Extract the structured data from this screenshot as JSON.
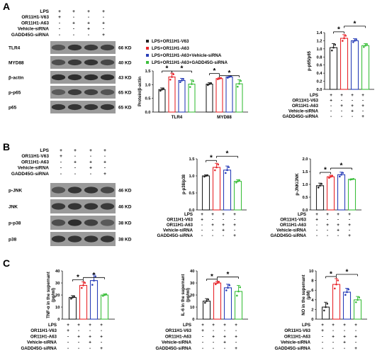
{
  "panel_labels": [
    "A",
    "B",
    "C"
  ],
  "kd_unit": " KD",
  "conditions_A": {
    "rows": [
      "LPS",
      "OR11H1-V63",
      "OR11H1-A63",
      "Vehicle-siRNA",
      "GADD45G-siRNA"
    ],
    "signs": [
      [
        "+",
        "+",
        "+",
        "+"
      ],
      [
        "+",
        "-",
        "-",
        "-"
      ],
      [
        "-",
        "+",
        "+",
        "+"
      ],
      [
        "-",
        "-",
        "+",
        "-"
      ],
      [
        "-",
        "-",
        "-",
        "+"
      ]
    ]
  },
  "conditions_B": {
    "rows": [
      "LPS",
      "OR11H1-V63",
      "OR11H1-A63",
      "Vehicle-siRNA",
      "GADD45G-siRNA"
    ],
    "signs": [
      [
        "+",
        "+",
        "+",
        "+"
      ],
      [
        "+",
        "-",
        "-",
        "-"
      ],
      [
        "-",
        "+",
        "+",
        "+"
      ],
      [
        "-",
        "-",
        "+",
        "-"
      ],
      [
        "-",
        "-",
        "-",
        "+"
      ]
    ]
  },
  "blots_A": [
    {
      "name": "TLR4",
      "kd": "66"
    },
    {
      "name": "MYD88",
      "kd": "40"
    },
    {
      "name": "β-actin",
      "kd": "43"
    },
    {
      "name": "p-p65",
      "kd": "65"
    },
    {
      "name": "p65",
      "kd": "65"
    }
  ],
  "blots_B": [
    {
      "name": "p-JNK",
      "kd": "46"
    },
    {
      "name": "JNK",
      "kd": "46"
    },
    {
      "name": "p-p38",
      "kd": "38"
    },
    {
      "name": "p38",
      "kd": "38"
    }
  ],
  "legend_A": [
    {
      "label": "LPS+OR11H1-V63",
      "color": "#222222"
    },
    {
      "label": "LPS+OR11H1-A63",
      "color": "#e8262b"
    },
    {
      "label": "LPS+OR11H1-A63+Vehicle-siRNA",
      "color": "#2a3fb8"
    },
    {
      "label": "LPS+OR11H1-A63+GADD45G-siRNA",
      "color": "#3cbf3c"
    }
  ],
  "series_colors": [
    "#222222",
    "#e8262b",
    "#2a3fb8",
    "#3cbf3c"
  ],
  "chart_data": [
    {
      "id": "A1",
      "type": "bar",
      "ylabel": "Protein/β-actin",
      "ylim": [
        0,
        1.5
      ],
      "yticks": [
        "0.0",
        "0.5",
        "1.0",
        "1.5"
      ],
      "categories": [
        "TLR4",
        "MYD88"
      ],
      "groups": [
        {
          "category": "TLR4",
          "values": [
            0.82,
            1.28,
            1.15,
            1.02
          ],
          "errors": [
            0.06,
            0.14,
            0.08,
            0.15
          ]
        },
        {
          "category": "MYD88",
          "values": [
            1.02,
            1.22,
            1.28,
            1.03
          ],
          "errors": [
            0.05,
            0.03,
            0.04,
            0.15
          ]
        }
      ],
      "significance": [
        "*",
        "*",
        "*",
        "*"
      ]
    },
    {
      "id": "A2",
      "type": "bar",
      "ylabel": "p-p65/p65",
      "ylim": [
        0.0,
        1.4
      ],
      "yticks": [
        "0.0",
        "0.2",
        "0.4",
        "0.6",
        "0.8",
        "1.0",
        "1.2",
        "1.4"
      ],
      "values": [
        1.03,
        1.26,
        1.2,
        1.08
      ],
      "errors": [
        0.1,
        0.09,
        0.05,
        0.05
      ],
      "significance": [
        "*",
        "*"
      ]
    },
    {
      "id": "B1",
      "type": "bar",
      "ylabel": "p-p38/p38",
      "ylim": [
        0,
        1.5
      ],
      "yticks": [
        "0.0",
        "0.5",
        "1.0",
        "1.5"
      ],
      "values": [
        1.0,
        1.25,
        1.17,
        0.84
      ],
      "errors": [
        0.03,
        0.12,
        0.12,
        0.05
      ],
      "significance": [
        "*",
        "*"
      ]
    },
    {
      "id": "B2",
      "type": "bar",
      "ylabel": "p-JNK/JNK",
      "ylim": [
        0,
        2.0
      ],
      "yticks": [
        "0.0",
        "0.5",
        "1.0",
        "1.5",
        "2.0"
      ],
      "values": [
        0.95,
        1.3,
        1.38,
        1.2
      ],
      "errors": [
        0.1,
        0.06,
        0.1,
        0.02
      ],
      "significance": [
        "*",
        "*"
      ]
    },
    {
      "id": "C1",
      "type": "bar",
      "ylabel": "TNF-α in the supernant (pg/ml)",
      "ylim": [
        0,
        40
      ],
      "yticks": [
        "0",
        "10",
        "20",
        "30",
        "40"
      ],
      "values": [
        18,
        28,
        32,
        20
      ],
      "errors": [
        1.5,
        3,
        5,
        1
      ],
      "significance": [
        "*",
        "*"
      ]
    },
    {
      "id": "C2",
      "type": "bar",
      "ylabel": "IL-6 in the supernant (pg/ml)",
      "ylim": [
        0,
        40
      ],
      "yticks": [
        "0",
        "10",
        "20",
        "30",
        "40"
      ],
      "values": [
        15,
        30,
        26,
        23
      ],
      "errors": [
        2,
        1.5,
        3,
        5
      ],
      "significance": [
        "*",
        "*"
      ]
    },
    {
      "id": "C3",
      "type": "bar",
      "ylabel": "NO in the supernant (μM)",
      "ylim": [
        0,
        10
      ],
      "yticks": [
        "0",
        "2",
        "4",
        "6",
        "8",
        "10"
      ],
      "values": [
        2.5,
        7.2,
        5.6,
        4.0
      ],
      "errors": [
        1.0,
        1.2,
        0.8,
        0.7
      ],
      "significance": [
        "*",
        "*"
      ]
    }
  ]
}
